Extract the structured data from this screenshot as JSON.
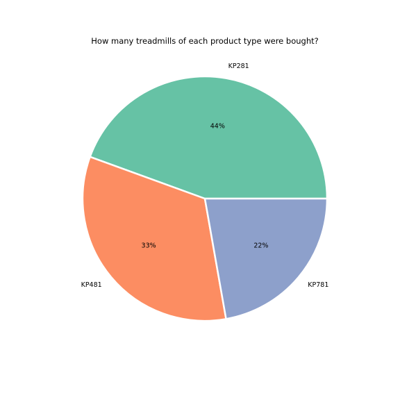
{
  "chart_data": {
    "type": "pie",
    "title": "How many treadmills of each product type were bought?",
    "categories": [
      "KP281",
      "KP481",
      "KP781"
    ],
    "values": [
      80,
      60,
      40
    ],
    "percent_labels": [
      "44%",
      "33%",
      "22%"
    ],
    "colors": [
      "#66c2a5",
      "#fc8d62",
      "#8da0cb"
    ],
    "start_angle_deg": 0,
    "direction": "counterclockwise",
    "edge_color": "#ffffff"
  }
}
